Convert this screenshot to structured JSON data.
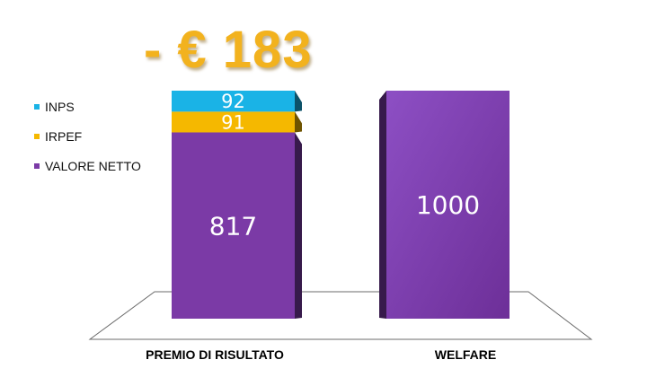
{
  "headline": "- € 183",
  "chart_data": {
    "type": "bar",
    "stacked": true,
    "style": "3d",
    "categories": [
      "PREMIO DI RISULTATO",
      "WELFARE"
    ],
    "series": [
      {
        "name": "VALORE NETTO",
        "color": "#7b3aa6",
        "values": [
          817,
          1000
        ],
        "labels": [
          "817",
          "1000"
        ]
      },
      {
        "name": "IRPEF",
        "color": "#f5b800",
        "values": [
          91,
          0
        ],
        "labels": [
          "91",
          ""
        ]
      },
      {
        "name": "INPS",
        "color": "#1ab3e6",
        "values": [
          92,
          0
        ],
        "labels": [
          "92",
          ""
        ]
      }
    ],
    "legend_order": [
      "INPS",
      "IRPEF",
      "VALORE NETTO"
    ],
    "legend_position": "left",
    "ylim": [
      0,
      1000
    ],
    "grid": false
  }
}
